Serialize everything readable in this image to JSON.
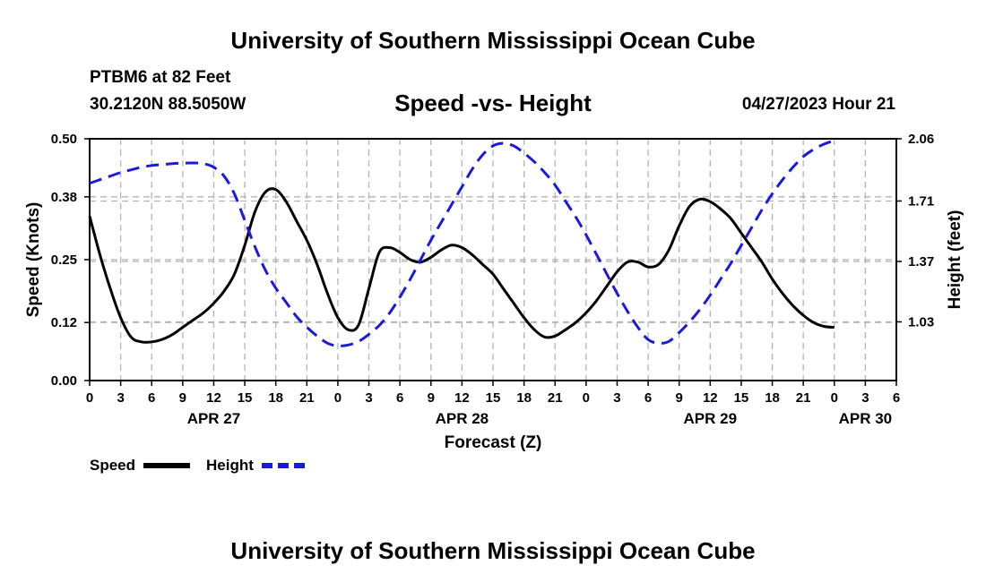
{
  "header": {
    "title": "University of Southern Mississippi Ocean Cube",
    "station": "PTBM6 at 82 Feet",
    "location": "30.2120N  88.5050W",
    "subtitle": "Speed -vs- Height",
    "datetime": "04/27/2023 Hour 21"
  },
  "footer": {
    "title": "University of Southern Mississippi Ocean Cube"
  },
  "chart_data": {
    "type": "line",
    "title": "Speed -vs- Height",
    "xlabel": "Forecast (Z)",
    "ylabel_left": "Speed (Knots)",
    "ylabel_right": "Height (feet)",
    "x_unit": "forecast hour from APR 27 00Z",
    "xlim": [
      0,
      78
    ],
    "ylim_left": [
      0,
      0.5
    ],
    "ylim_right": [
      0.7,
      2.06
    ],
    "left_ticks": [
      "0.00",
      "0.12",
      "0.25",
      "0.38",
      "0.50"
    ],
    "right_ticks": [
      "1.03",
      "1.37",
      "1.71",
      "2.06"
    ],
    "x_tick_labels": [
      "0",
      "3",
      "6",
      "9",
      "12",
      "15",
      "18",
      "21",
      "0",
      "3",
      "6",
      "9",
      "12",
      "15",
      "18",
      "21",
      "0",
      "3",
      "6",
      "9",
      "12",
      "15",
      "18",
      "21",
      "0",
      "3",
      "6"
    ],
    "date_labels": [
      {
        "label": "APR 27",
        "hour": 12
      },
      {
        "label": "APR 28",
        "hour": 36
      },
      {
        "label": "APR 29",
        "hour": 60
      },
      {
        "label": "APR 30",
        "hour": 75
      }
    ],
    "grid": true,
    "legend_position": "bottom-left",
    "series": [
      {
        "name": "Speed",
        "axis": "left",
        "color": "#000000",
        "dash": "solid",
        "points": [
          [
            0,
            0.34
          ],
          [
            1,
            0.26
          ],
          [
            2,
            0.19
          ],
          [
            3,
            0.13
          ],
          [
            4,
            0.09
          ],
          [
            5,
            0.08
          ],
          [
            6,
            0.08
          ],
          [
            7,
            0.085
          ],
          [
            8,
            0.095
          ],
          [
            9,
            0.11
          ],
          [
            10,
            0.125
          ],
          [
            11,
            0.14
          ],
          [
            12,
            0.16
          ],
          [
            13,
            0.185
          ],
          [
            14,
            0.22
          ],
          [
            15,
            0.28
          ],
          [
            16,
            0.35
          ],
          [
            17,
            0.39
          ],
          [
            18,
            0.395
          ],
          [
            19,
            0.37
          ],
          [
            20,
            0.33
          ],
          [
            21,
            0.29
          ],
          [
            22,
            0.24
          ],
          [
            23,
            0.18
          ],
          [
            24,
            0.13
          ],
          [
            25,
            0.105
          ],
          [
            26,
            0.115
          ],
          [
            27,
            0.19
          ],
          [
            28,
            0.265
          ],
          [
            29,
            0.275
          ],
          [
            30,
            0.265
          ],
          [
            31,
            0.25
          ],
          [
            32,
            0.245
          ],
          [
            33,
            0.255
          ],
          [
            34,
            0.27
          ],
          [
            35,
            0.28
          ],
          [
            36,
            0.275
          ],
          [
            37,
            0.26
          ],
          [
            38,
            0.24
          ],
          [
            39,
            0.22
          ],
          [
            40,
            0.19
          ],
          [
            41,
            0.16
          ],
          [
            42,
            0.13
          ],
          [
            43,
            0.105
          ],
          [
            44,
            0.09
          ],
          [
            45,
            0.092
          ],
          [
            46,
            0.105
          ],
          [
            47,
            0.12
          ],
          [
            48,
            0.14
          ],
          [
            49,
            0.165
          ],
          [
            50,
            0.195
          ],
          [
            51,
            0.225
          ],
          [
            52,
            0.245
          ],
          [
            53,
            0.245
          ],
          [
            54,
            0.235
          ],
          [
            55,
            0.24
          ],
          [
            56,
            0.27
          ],
          [
            57,
            0.32
          ],
          [
            58,
            0.36
          ],
          [
            59,
            0.375
          ],
          [
            60,
            0.37
          ],
          [
            61,
            0.355
          ],
          [
            62,
            0.335
          ],
          [
            63,
            0.305
          ],
          [
            64,
            0.275
          ],
          [
            65,
            0.245
          ],
          [
            66,
            0.21
          ],
          [
            67,
            0.18
          ],
          [
            68,
            0.155
          ],
          [
            69,
            0.135
          ],
          [
            70,
            0.12
          ],
          [
            71,
            0.112
          ],
          [
            72,
            0.11
          ]
        ]
      },
      {
        "name": "Height",
        "axis": "right",
        "color": "#1a1adc",
        "dash": "dashed",
        "points": [
          [
            0,
            1.81
          ],
          [
            1,
            1.83
          ],
          [
            2,
            1.85
          ],
          [
            3,
            1.87
          ],
          [
            4,
            1.885
          ],
          [
            5,
            1.9
          ],
          [
            6,
            1.91
          ],
          [
            7,
            1.915
          ],
          [
            8,
            1.92
          ],
          [
            9,
            1.923
          ],
          [
            10,
            1.924
          ],
          [
            11,
            1.92
          ],
          [
            12,
            1.9
          ],
          [
            13,
            1.85
          ],
          [
            14,
            1.75
          ],
          [
            15,
            1.6
          ],
          [
            16,
            1.45
          ],
          [
            17,
            1.32
          ],
          [
            18,
            1.22
          ],
          [
            19,
            1.14
          ],
          [
            20,
            1.06
          ],
          [
            21,
            1.0
          ],
          [
            22,
            0.95
          ],
          [
            23,
            0.91
          ],
          [
            24,
            0.895
          ],
          [
            25,
            0.9
          ],
          [
            26,
            0.92
          ],
          [
            27,
            0.96
          ],
          [
            28,
            1.01
          ],
          [
            29,
            1.08
          ],
          [
            30,
            1.17
          ],
          [
            31,
            1.27
          ],
          [
            32,
            1.38
          ],
          [
            33,
            1.49
          ],
          [
            34,
            1.59
          ],
          [
            35,
            1.69
          ],
          [
            36,
            1.79
          ],
          [
            37,
            1.89
          ],
          [
            38,
            1.97
          ],
          [
            39,
            2.02
          ],
          [
            40,
            2.035
          ],
          [
            41,
            2.02
          ],
          [
            42,
            1.98
          ],
          [
            43,
            1.93
          ],
          [
            44,
            1.87
          ],
          [
            45,
            1.8
          ],
          [
            46,
            1.71
          ],
          [
            47,
            1.62
          ],
          [
            48,
            1.52
          ],
          [
            49,
            1.41
          ],
          [
            50,
            1.3
          ],
          [
            51,
            1.19
          ],
          [
            52,
            1.09
          ],
          [
            53,
            1.0
          ],
          [
            54,
            0.93
          ],
          [
            55,
            0.91
          ],
          [
            56,
            0.92
          ],
          [
            57,
            0.97
          ],
          [
            58,
            1.03
          ],
          [
            59,
            1.1
          ],
          [
            60,
            1.18
          ],
          [
            61,
            1.27
          ],
          [
            62,
            1.36
          ],
          [
            63,
            1.46
          ],
          [
            64,
            1.56
          ],
          [
            65,
            1.66
          ],
          [
            66,
            1.75
          ],
          [
            67,
            1.83
          ],
          [
            68,
            1.9
          ],
          [
            69,
            1.96
          ],
          [
            70,
            2.0
          ],
          [
            71,
            2.03
          ],
          [
            72,
            2.05
          ]
        ]
      }
    ]
  }
}
